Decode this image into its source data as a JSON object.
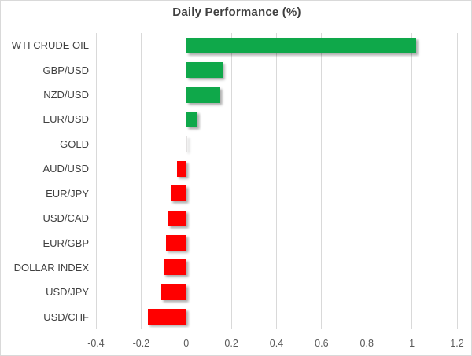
{
  "chart_data": {
    "type": "bar",
    "orientation": "horizontal",
    "title": "Daily Performance (%)",
    "categories": [
      "WTI CRUDE OIL",
      "GBP/USD",
      "NZD/USD",
      "EUR/USD",
      "GOLD",
      "AUD/USD",
      "EUR/JPY",
      "USD/CAD",
      "EUR/GBP",
      "DOLLAR INDEX",
      "USD/JPY",
      "USD/CHF"
    ],
    "values": [
      1.02,
      0.16,
      0.15,
      0.05,
      0.0,
      -0.04,
      -0.07,
      -0.08,
      -0.09,
      -0.1,
      -0.11,
      -0.17
    ],
    "xlabel": "",
    "ylabel": "",
    "xlim": [
      -0.4,
      1.2
    ],
    "x_tick_values": [
      -0.4,
      -0.2,
      0,
      0.2,
      0.4,
      0.6,
      0.8,
      1,
      1.2
    ],
    "x_tick_labels": [
      "-0.4",
      "-0.2",
      "0",
      "0.2",
      "0.4",
      "0.6",
      "0.8",
      "1",
      "1.2"
    ],
    "grid": "vertical",
    "legend": "none",
    "colors": {
      "positive": "#0fa84a",
      "negative": "#ff0000",
      "zero_sliver": "#e3e1e1",
      "gridline": "#d9d9d9",
      "title_text": "#404040",
      "category_text": "#404040",
      "tick_text": "#595959",
      "border": "#d9d9d9",
      "background": "#ffffff"
    }
  }
}
